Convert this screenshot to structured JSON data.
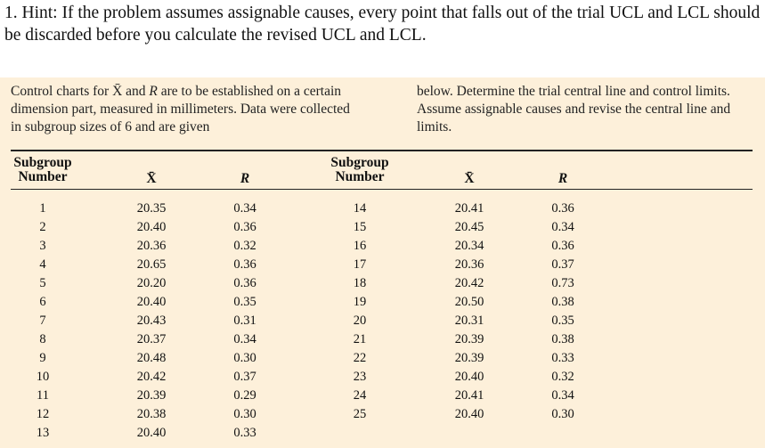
{
  "hint": "1. Hint: If the problem assumes assignable causes, every point that falls out of the trial UCL and LCL should be discarded before you calculate the revised UCL and LCL.",
  "intro": {
    "left": [
      "Control charts for ",
      "X̄",
      " and ",
      "R",
      " are to be established on a certain dimension part, measured in millimeters. Data were collected in subgroup sizes of 6 and are given"
    ],
    "right": "below. Determine the trial central line and control limits. Assume assignable causes and revise the central line and limits."
  },
  "table": {
    "headers": [
      "Subgroup Number",
      "X̄",
      "R",
      "Subgroup Number",
      "X̄",
      "R"
    ],
    "left_rows": [
      [
        "1",
        "20.35",
        "0.34"
      ],
      [
        "2",
        "20.40",
        "0.36"
      ],
      [
        "3",
        "20.36",
        "0.32"
      ],
      [
        "4",
        "20.65",
        "0.36"
      ],
      [
        "5",
        "20.20",
        "0.36"
      ],
      [
        "6",
        "20.40",
        "0.35"
      ],
      [
        "7",
        "20.43",
        "0.31"
      ],
      [
        "8",
        "20.37",
        "0.34"
      ],
      [
        "9",
        "20.48",
        "0.30"
      ],
      [
        "10",
        "20.42",
        "0.37"
      ],
      [
        "11",
        "20.39",
        "0.29"
      ],
      [
        "12",
        "20.38",
        "0.30"
      ],
      [
        "13",
        "20.40",
        "0.33"
      ]
    ],
    "right_rows": [
      [
        "14",
        "20.41",
        "0.36"
      ],
      [
        "15",
        "20.45",
        "0.34"
      ],
      [
        "16",
        "20.34",
        "0.36"
      ],
      [
        "17",
        "20.36",
        "0.37"
      ],
      [
        "18",
        "20.42",
        "0.73"
      ],
      [
        "19",
        "20.50",
        "0.38"
      ],
      [
        "20",
        "20.31",
        "0.35"
      ],
      [
        "21",
        "20.39",
        "0.38"
      ],
      [
        "22",
        "20.39",
        "0.33"
      ],
      [
        "23",
        "20.40",
        "0.32"
      ],
      [
        "24",
        "20.41",
        "0.34"
      ],
      [
        "25",
        "20.40",
        "0.30"
      ]
    ]
  }
}
